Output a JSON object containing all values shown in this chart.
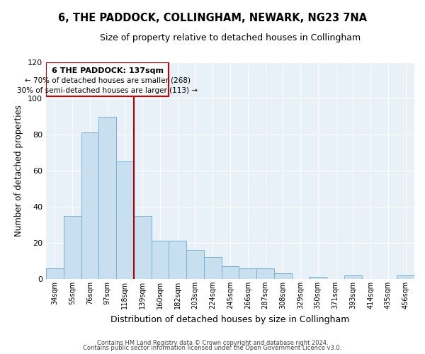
{
  "title": "6, THE PADDOCK, COLLINGHAM, NEWARK, NG23 7NA",
  "subtitle": "Size of property relative to detached houses in Collingham",
  "xlabel": "Distribution of detached houses by size in Collingham",
  "ylabel": "Number of detached properties",
  "bar_color": "#c8dff0",
  "bar_edge_color": "#7aafd4",
  "categories": [
    "34sqm",
    "55sqm",
    "76sqm",
    "97sqm",
    "118sqm",
    "139sqm",
    "160sqm",
    "182sqm",
    "203sqm",
    "224sqm",
    "245sqm",
    "266sqm",
    "287sqm",
    "308sqm",
    "329sqm",
    "350sqm",
    "371sqm",
    "393sqm",
    "414sqm",
    "435sqm",
    "456sqm"
  ],
  "values": [
    6,
    35,
    81,
    90,
    65,
    35,
    21,
    21,
    16,
    12,
    7,
    6,
    6,
    3,
    0,
    1,
    0,
    2,
    0,
    0,
    2
  ],
  "ylim": [
    0,
    120
  ],
  "yticks": [
    0,
    20,
    40,
    60,
    80,
    100,
    120
  ],
  "marker_label": "6 THE PADDOCK: 137sqm",
  "annotation_line1": "← 70% of detached houses are smaller (268)",
  "annotation_line2": "30% of semi-detached houses are larger (113) →",
  "vline_color": "#aa0000",
  "box_edge_color": "#cc0000",
  "footer1": "Contains HM Land Registry data © Crown copyright and database right 2024.",
  "footer2": "Contains public sector information licensed under the Open Government Licence v3.0.",
  "background_color": "#ffffff",
  "plot_bg_color": "#e8f0f8",
  "grid_color": "#ffffff"
}
